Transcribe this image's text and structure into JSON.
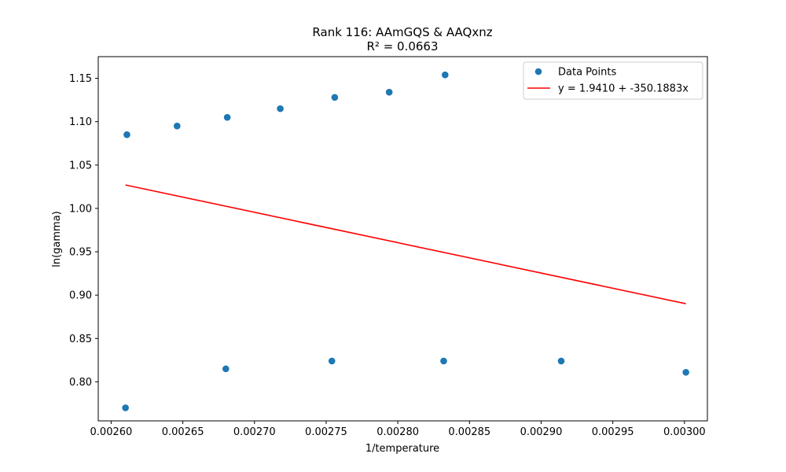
{
  "chart_data": {
    "type": "scatter",
    "title": "Rank 116: AAmGQS & AAQxnz",
    "subtitle": "R² = 0.0663",
    "xlabel": "1/temperature",
    "ylabel": "ln(gamma)",
    "xlim": [
      0.002591,
      0.003016
    ],
    "ylim": [
      0.755,
      1.175
    ],
    "x_ticks": [
      0.0026,
      0.00265,
      0.0027,
      0.00275,
      0.0028,
      0.00285,
      0.0029,
      0.00295,
      0.003
    ],
    "x_tick_labels": [
      "0.00260",
      "0.00265",
      "0.00270",
      "0.00275",
      "0.00280",
      "0.00285",
      "0.00290",
      "0.00295",
      "0.00300"
    ],
    "y_ticks": [
      0.8,
      0.85,
      0.9,
      0.95,
      1.0,
      1.05,
      1.1,
      1.15
    ],
    "y_tick_labels": [
      "0.80",
      "0.85",
      "0.90",
      "0.95",
      "1.00",
      "1.05",
      "1.10",
      "1.15"
    ],
    "grid": false,
    "legend_position": "top-right",
    "series": [
      {
        "name": "Data Points",
        "kind": "scatter",
        "color": "#1f77b4",
        "points": [
          {
            "x": 0.002611,
            "y": 1.085
          },
          {
            "x": 0.002646,
            "y": 1.095
          },
          {
            "x": 0.002681,
            "y": 1.105
          },
          {
            "x": 0.002718,
            "y": 1.115
          },
          {
            "x": 0.002756,
            "y": 1.128
          },
          {
            "x": 0.002794,
            "y": 1.134
          },
          {
            "x": 0.002833,
            "y": 1.154
          },
          {
            "x": 0.00261,
            "y": 0.77
          },
          {
            "x": 0.00268,
            "y": 0.815
          },
          {
            "x": 0.002754,
            "y": 0.824
          },
          {
            "x": 0.002832,
            "y": 0.824
          },
          {
            "x": 0.002914,
            "y": 0.824
          },
          {
            "x": 0.003001,
            "y": 0.811
          }
        ]
      },
      {
        "name": "y = 1.9410 + -350.1883x",
        "kind": "line",
        "color": "#ff0000",
        "intercept": 1.941,
        "slope": -350.1883,
        "x_range": [
          0.00261,
          0.003001
        ]
      }
    ]
  }
}
